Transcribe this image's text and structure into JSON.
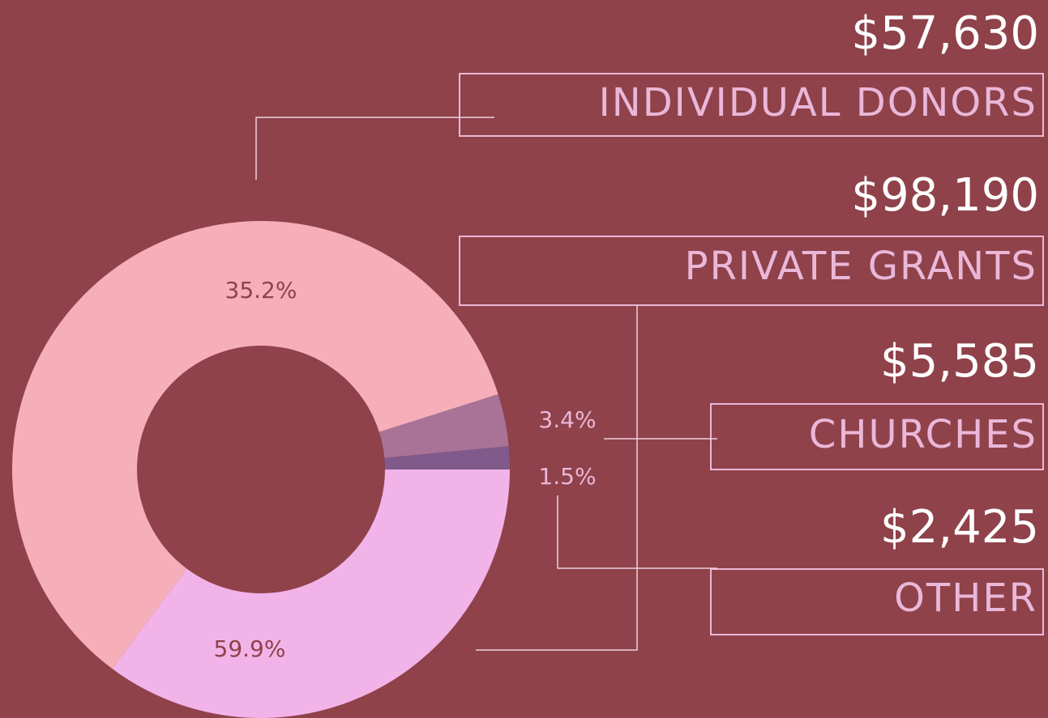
{
  "chart_data": {
    "type": "pie",
    "donut": true,
    "categories": [
      "INDIVIDUAL DONORS",
      "PRIVATE GRANTS",
      "CHURCHES",
      "OTHER"
    ],
    "values": [
      35.2,
      59.9,
      3.4,
      1.5
    ],
    "value_labels": [
      "35.2%",
      "59.9%",
      "3.4%",
      "1.5%"
    ],
    "amounts": [
      57630,
      98190,
      5585,
      2425
    ],
    "amount_labels": [
      "$57,630",
      "$98,190",
      "$5,585",
      "$2,425"
    ],
    "colors": [
      "#f2b3e9",
      "#f6aeb9",
      "#a87397",
      "#7f5a8a"
    ]
  }
}
